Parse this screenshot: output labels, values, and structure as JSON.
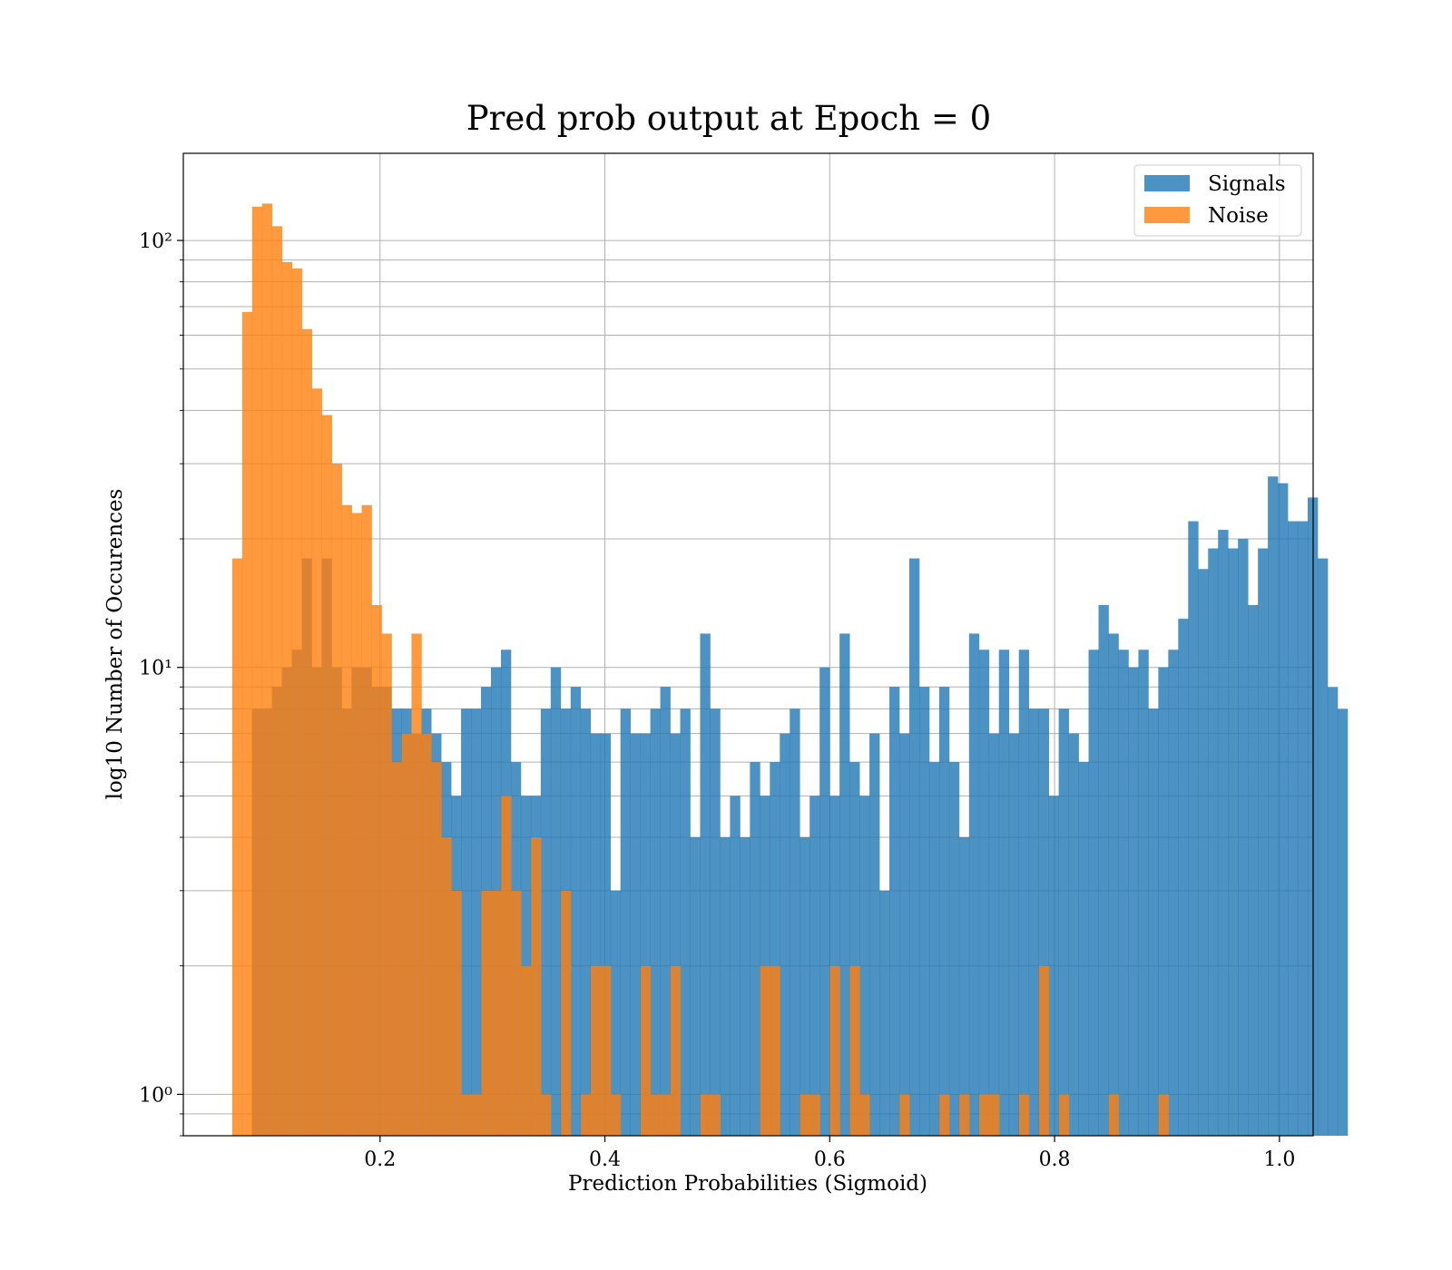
{
  "chart_data": {
    "type": "bar",
    "title": "Pred prob output at Epoch = 0",
    "xlabel": "Prediction Probabilities (Sigmoid)",
    "ylabel": "log10 Number of Occurences",
    "xlim": [
      0.025,
      1.03
    ],
    "ylim": [
      0.8,
      160
    ],
    "yscale": "log",
    "grid": true,
    "legend_position": "top-right",
    "xticks": [
      0.2,
      0.4,
      0.6,
      0.8,
      1.0
    ],
    "xtick_labels": [
      "0.2",
      "0.4",
      "0.6",
      "0.8",
      "1.0"
    ],
    "yticks": [
      1,
      10,
      100
    ],
    "ytick_labels": [
      "10⁰",
      "10¹",
      "10²"
    ],
    "series": [
      {
        "name": "Signals",
        "color": "#1f77b4",
        "bin_start": 0.086,
        "bin_width": 0.00886,
        "values": [
          8,
          8,
          9,
          10,
          11,
          18,
          10,
          18,
          10,
          8,
          10,
          10,
          9,
          9,
          8,
          8,
          7,
          8,
          7,
          6,
          5,
          8,
          8,
          9,
          10,
          11,
          6,
          5,
          5,
          8,
          10,
          8,
          9,
          8,
          7,
          7,
          3,
          8,
          7,
          7,
          8,
          9,
          7,
          8,
          4,
          12,
          8,
          4,
          5,
          4,
          6,
          5,
          6,
          7,
          8,
          4,
          5,
          10,
          5,
          12,
          6,
          5,
          7,
          3,
          9,
          7,
          18,
          9,
          6,
          9,
          6,
          4,
          12,
          11,
          7,
          11,
          7,
          11,
          8,
          8,
          5,
          8,
          7,
          6,
          11,
          14,
          12,
          11,
          10,
          11,
          8,
          10,
          11,
          13,
          22,
          17,
          19,
          21,
          19,
          20,
          14,
          19,
          28,
          27,
          22,
          22,
          25,
          18,
          9,
          8
        ]
      },
      {
        "name": "Noise",
        "color": "#ff7f0e",
        "bin_start": 0.0685,
        "bin_width": 0.00886,
        "values": [
          18,
          68,
          120,
          122,
          108,
          89,
          86,
          62,
          45,
          39,
          30,
          24,
          23,
          24,
          14,
          12,
          6,
          7,
          12,
          7,
          6,
          4,
          3,
          1,
          1,
          3,
          3,
          5,
          3,
          2,
          4,
          1,
          0,
          3,
          0,
          1,
          2,
          2,
          1,
          0,
          0,
          2,
          1,
          1,
          2,
          0,
          0,
          1,
          1,
          0,
          0,
          0,
          0,
          2,
          2,
          0,
          0,
          1,
          1,
          0,
          2,
          0,
          2,
          1,
          0,
          0,
          0,
          1,
          0,
          0,
          0,
          1,
          0,
          1,
          0,
          1,
          1,
          0,
          0,
          1,
          0,
          2,
          0,
          1,
          0,
          0,
          0,
          0,
          1,
          0,
          0,
          0,
          0,
          1
        ]
      }
    ]
  }
}
